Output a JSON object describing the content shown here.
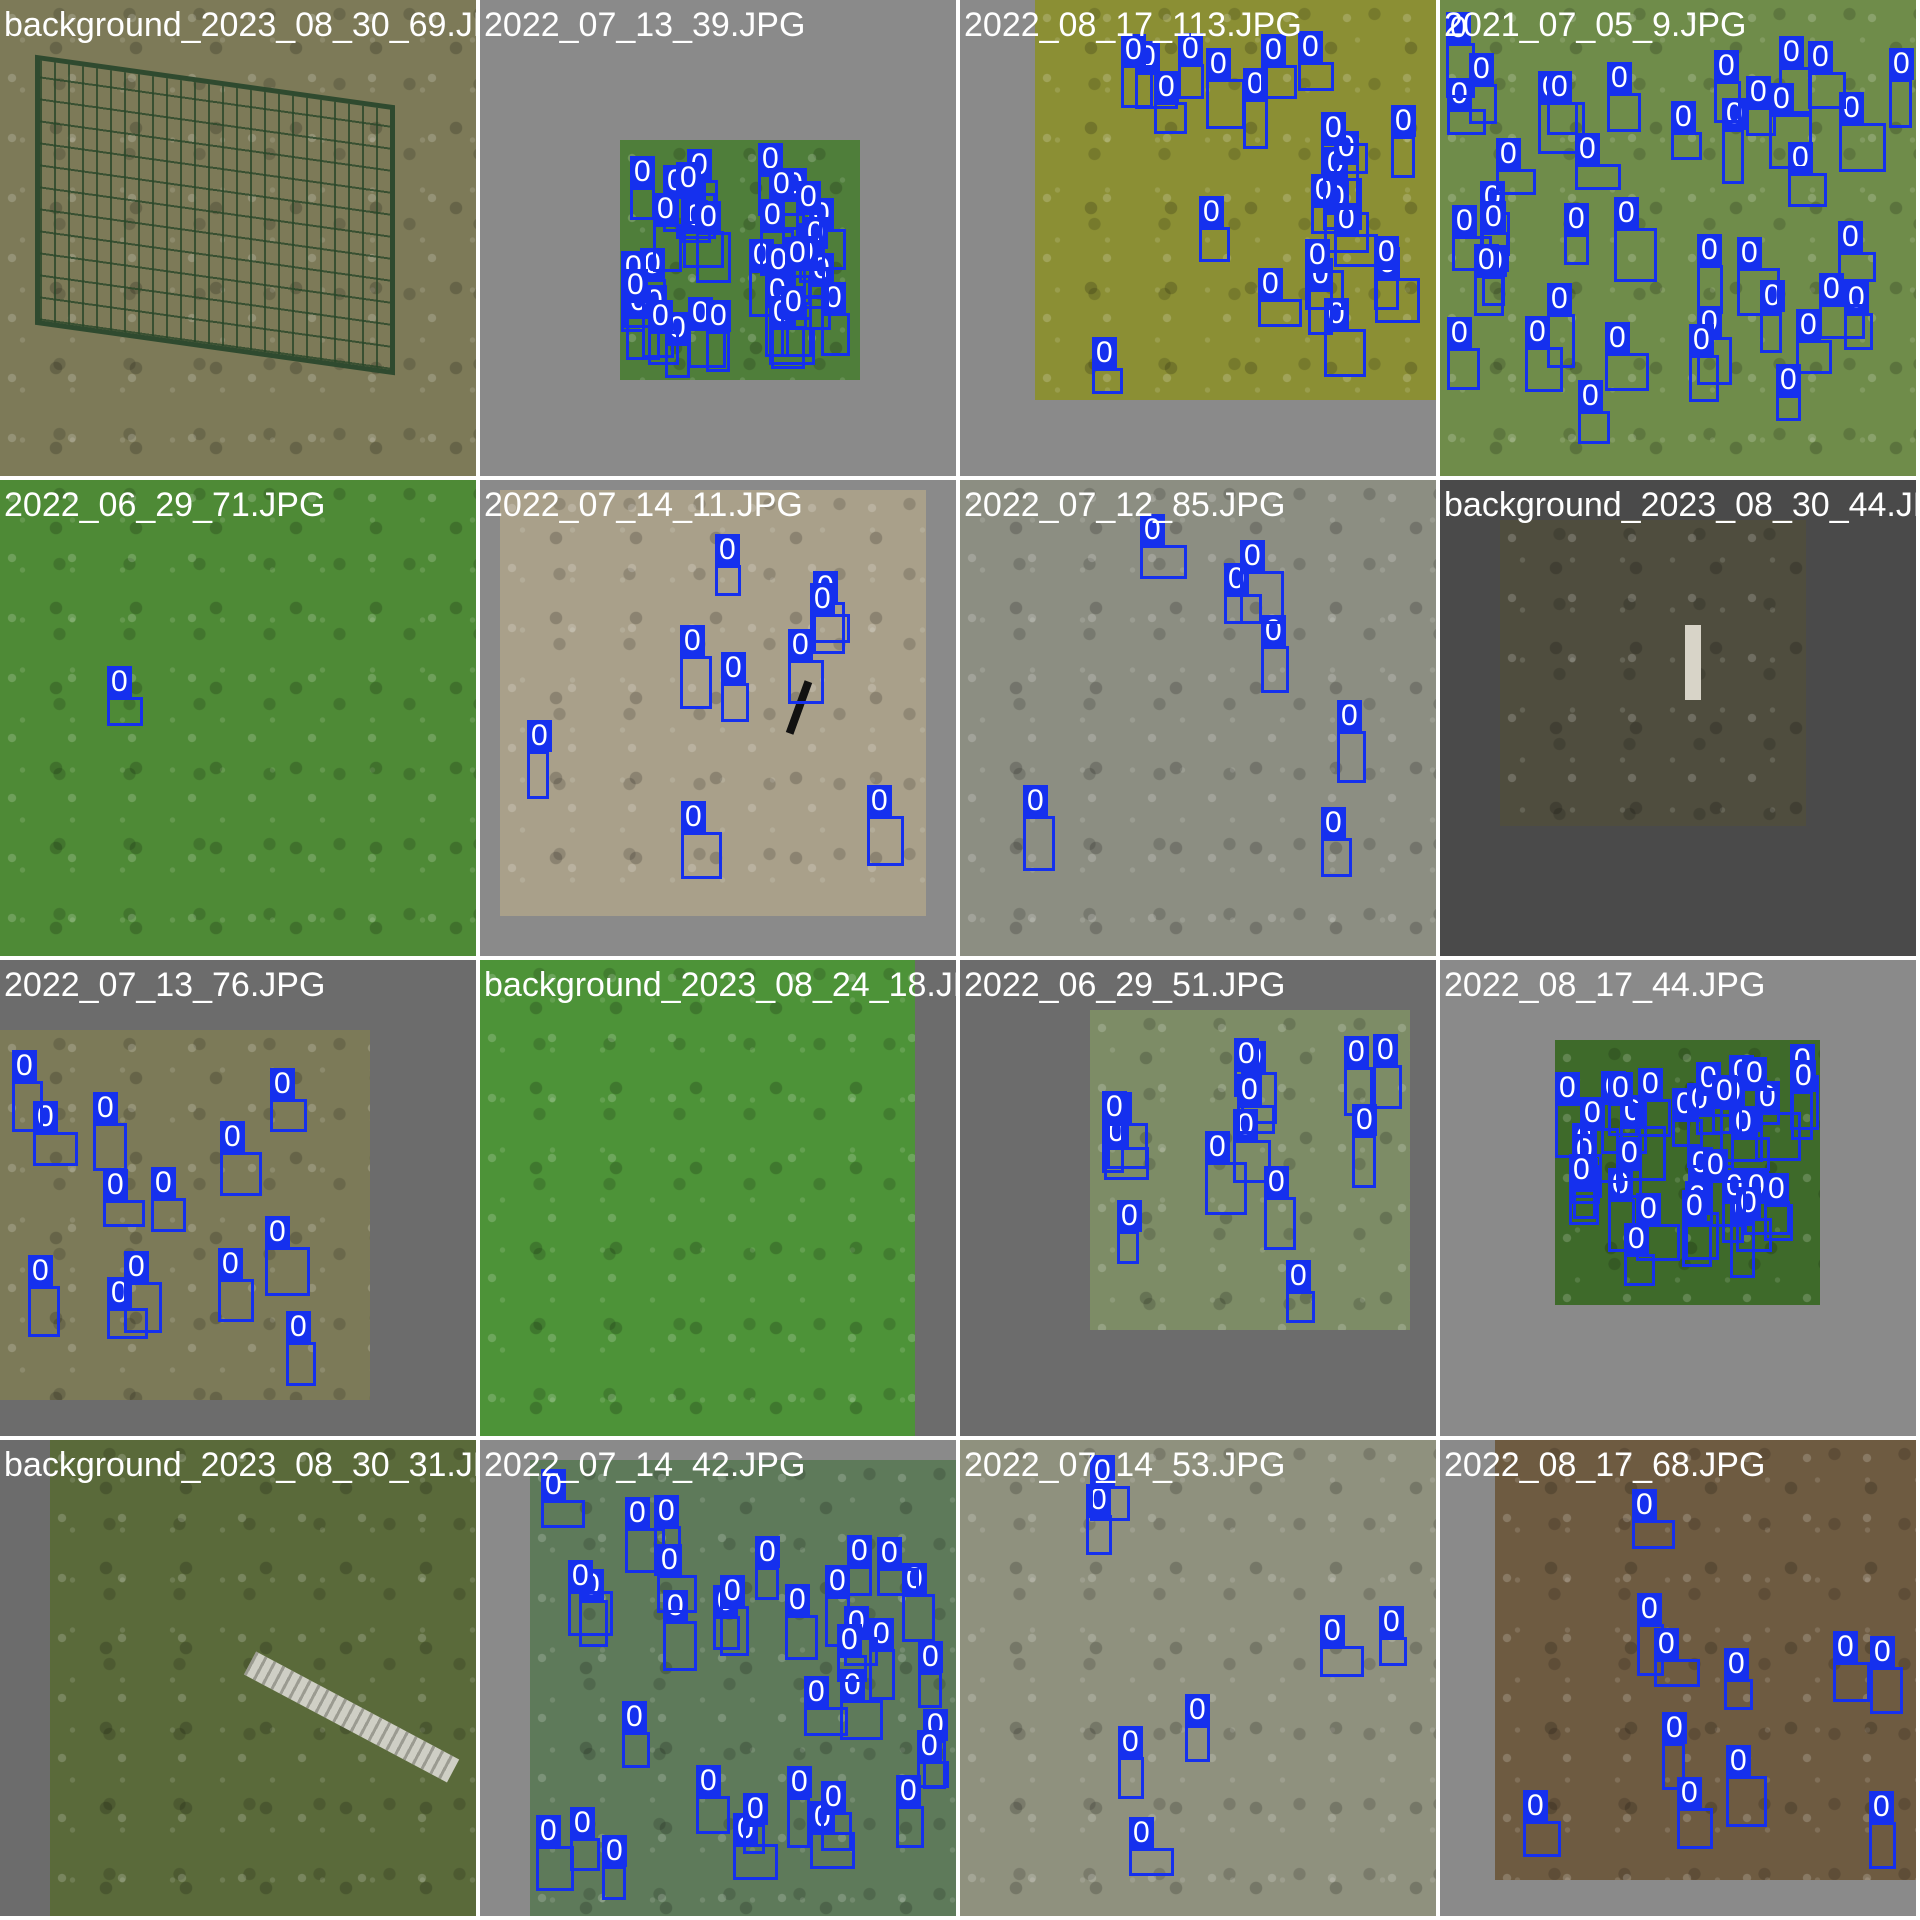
{
  "colors": {
    "box": "#1530ee",
    "label_text": "#ffffff",
    "divider": "#ffffff",
    "pad_light": "#8a8a8a",
    "pad_mid": "#6c6c6c",
    "pad_dark": "#4a4a4a"
  },
  "icons": {
    "fence_post": "fence-post-icon",
    "marker_stake": "marker-stake-icon"
  },
  "tiles": [
    {
      "label": "background_2023_08_30_69.JPG",
      "pad": "#6c6c6c",
      "photo_bg": "#7d7a58",
      "objects": [
        "fence"
      ],
      "boxes": []
    },
    {
      "label": "2022_07_13_39.JPG",
      "pad": "#8a8a8a",
      "photo_bg": "#4f7e3a",
      "boxes": [
        "0",
        "0",
        "0",
        "0",
        "0",
        "0",
        "0",
        "0",
        "0",
        "0",
        "0",
        "0",
        "0",
        "0",
        "0",
        "0",
        "0",
        "0",
        "0",
        "0",
        "0",
        "0",
        "0",
        "0",
        "0",
        "0",
        "0",
        "0",
        "0",
        "0",
        "0",
        "0",
        "0",
        "0",
        "0",
        "0"
      ]
    },
    {
      "label": "2022_08_17_113.JPG",
      "pad": "#8a8a8a",
      "photo_bg": "#8b8f34",
      "boxes": [
        "0",
        "0",
        "0",
        "0",
        "0",
        "0",
        "0",
        "0",
        "0",
        "0",
        "0",
        "0",
        "0",
        "0",
        "0",
        "0",
        "0",
        "0",
        "0",
        "0",
        "0",
        "0",
        "0"
      ]
    },
    {
      "label": "2021_07_05_9.JPG",
      "pad": "#8a8a8a",
      "photo_bg": "#6f8c4a",
      "boxes": [
        "0",
        "0",
        "0",
        "0",
        "0",
        "0",
        "0",
        "0",
        "0",
        "0",
        "0",
        "0",
        "0",
        "0",
        "0",
        "0",
        "0",
        "0",
        "0",
        "0",
        "0",
        "0",
        "0",
        "0",
        "0",
        "0",
        "0",
        "0",
        "0",
        "0",
        "0",
        "0",
        "0",
        "0",
        "0",
        "0",
        "0",
        "0",
        "0",
        "0"
      ]
    },
    {
      "label": "2022_06_29_71.JPG",
      "pad": "#6c6c6c",
      "photo_bg": "#4e8a36",
      "boxes": [
        "0"
      ]
    },
    {
      "label": "2022_07_14_11.JPG",
      "pad": "#8a8a8a",
      "photo_bg": "#a9a08a",
      "objects": [
        "stake"
      ],
      "boxes": [
        "0",
        "0",
        "0",
        "0",
        "0",
        "0",
        "0",
        "0",
        "0"
      ]
    },
    {
      "label": "2022_07_12_85.JPG",
      "pad": "#6c6c6c",
      "photo_bg": "#8c8e82",
      "boxes": [
        "0",
        "0",
        "0",
        "0",
        "0",
        "0",
        "0"
      ]
    },
    {
      "label": "background_2023_08_30_44.JPG",
      "pad": "#4a4a4a",
      "photo_bg": "#4f4d3e",
      "objects": [
        "post"
      ],
      "boxes": []
    },
    {
      "label": "2022_07_13_76.JPG",
      "pad": "#6c6c6c",
      "photo_bg": "#7c7a58",
      "boxes": [
        "0",
        "0",
        "0",
        "0",
        "0",
        "0",
        "0",
        "0",
        "0",
        "0",
        "0",
        "0",
        "0"
      ]
    },
    {
      "label": "background_2023_08_24_18.JPG",
      "pad": "#6c6c6c",
      "photo_bg": "#4d9338",
      "boxes": []
    },
    {
      "label": "2022_06_29_51.JPG",
      "pad": "#6c6c6c",
      "photo_bg": "#7d8c66",
      "boxes": [
        "0",
        "0",
        "0",
        "0",
        "0",
        "0",
        "0",
        "0",
        "0",
        "0",
        "0",
        "0",
        "0",
        "0"
      ]
    },
    {
      "label": "2022_08_17_44.JPG",
      "pad": "#8a8a8a",
      "photo_bg": "#3e6a2a",
      "boxes": [
        "0",
        "0",
        "0",
        "0",
        "0",
        "0",
        "0",
        "0",
        "0",
        "0",
        "0",
        "0",
        "0",
        "0",
        "0",
        "0",
        "0",
        "0",
        "0",
        "0",
        "0",
        "0",
        "0",
        "0",
        "0",
        "0",
        "0",
        "0",
        "0",
        "0",
        "0",
        "0",
        "0",
        "0"
      ]
    },
    {
      "label": "background_2023_08_30_31.JPG",
      "pad": "#6c6c6c",
      "photo_bg": "#5a6a3a",
      "objects": [
        "stake"
      ],
      "boxes": []
    },
    {
      "label": "2022_07_14_42.JPG",
      "pad": "#8a8a8a",
      "photo_bg": "#5e7a5a",
      "boxes": [
        "0",
        "0",
        "0",
        "0",
        "0",
        "0",
        "0",
        "0",
        "0",
        "0",
        "0",
        "0",
        "0",
        "0",
        "0",
        "0",
        "0",
        "0",
        "0",
        "0",
        "0",
        "0",
        "0",
        "0",
        "0",
        "0",
        "0",
        "0",
        "0",
        "0",
        "0",
        "0",
        "0",
        "0"
      ]
    },
    {
      "label": "2022_07_14_53.JPG",
      "pad": "#8a8a8a",
      "photo_bg": "#8f917e",
      "boxes": [
        "0",
        "0",
        "0",
        "0",
        "0",
        "0",
        "0"
      ]
    },
    {
      "label": "2022_08_17_68.JPG",
      "pad": "#8a8a8a",
      "photo_bg": "#6e5b41",
      "boxes": [
        "0",
        "0",
        "0",
        "0",
        "0",
        "0",
        "0",
        "0",
        "0",
        "0",
        "0"
      ]
    }
  ]
}
